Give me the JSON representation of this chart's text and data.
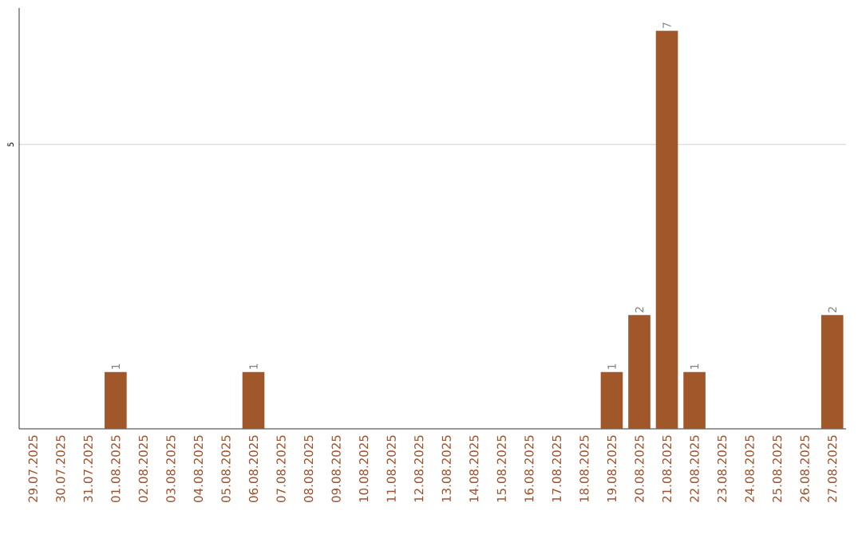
{
  "chart_data": {
    "type": "bar",
    "categories": [
      "29.07.2025",
      "30.07.2025",
      "31.07.2025",
      "01.08.2025",
      "02.08.2025",
      "03.08.2025",
      "04.08.2025",
      "05.08.2025",
      "06.08.2025",
      "07.08.2025",
      "08.08.2025",
      "09.08.2025",
      "10.08.2025",
      "11.08.2025",
      "12.08.2025",
      "13.08.2025",
      "14.08.2025",
      "15.08.2025",
      "16.08.2025",
      "17.08.2025",
      "18.08.2025",
      "19.08.2025",
      "20.08.2025",
      "21.08.2025",
      "22.08.2025",
      "23.08.2025",
      "24.08.2025",
      "25.08.2025",
      "26.08.2025",
      "27.08.2025"
    ],
    "values": [
      0,
      0,
      0,
      1,
      0,
      0,
      0,
      0,
      1,
      0,
      0,
      0,
      0,
      0,
      0,
      0,
      0,
      0,
      0,
      0,
      0,
      1,
      2,
      7,
      1,
      0,
      0,
      0,
      0,
      2
    ],
    "value_labels": [
      null,
      null,
      null,
      "1",
      null,
      null,
      null,
      null,
      "1",
      null,
      null,
      null,
      null,
      null,
      null,
      null,
      null,
      null,
      null,
      null,
      null,
      "1",
      "2",
      "7",
      "1",
      null,
      null,
      null,
      null,
      "2"
    ],
    "color": "#a0582a",
    "ylim": [
      0,
      7.4
    ],
    "yticks": [
      5
    ],
    "grid": "y"
  }
}
